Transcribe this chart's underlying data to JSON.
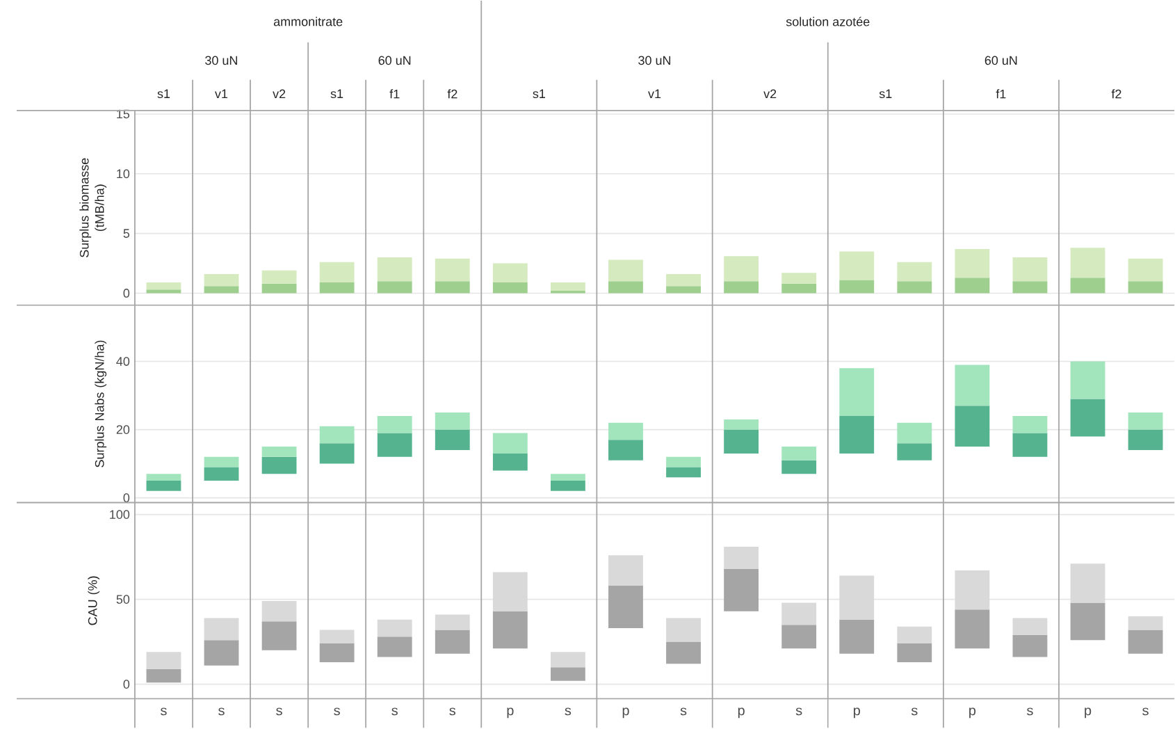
{
  "chart_data": [
    {
      "type": "bar",
      "ylabel": "Surplus biomasse (tMB/ha)",
      "grid": "y",
      "tick_labels": "y",
      "stacked": true,
      "categories": [
        null,
        null,
        null,
        null,
        null,
        null,
        null,
        null,
        null,
        null,
        null,
        null,
        null,
        null,
        null,
        null,
        null,
        null
      ],
      "series": [
        {
          "color": "#9fcf8f",
          "values": [
            0.3,
            0.6,
            0.8,
            0.9,
            1.0,
            1.0,
            0.9,
            0.2,
            1.0,
            0.6,
            1.0,
            0.8,
            1.1,
            1.0,
            1.3,
            1.0,
            1.3,
            1.0
          ]
        },
        {
          "color": "#d5ebbf",
          "values": [
            0.6,
            1.0,
            1.1,
            1.7,
            2.0,
            1.9,
            1.6,
            0.7,
            1.8,
            1.0,
            2.1,
            0.9,
            2.4,
            1.6,
            2.4,
            2.0,
            2.5,
            1.9
          ]
        }
      ],
      "ylim": [
        -1,
        15.3
      ],
      "yticks": [
        0,
        5,
        10,
        15
      ],
      "annotations": [
        "ammonitrate",
        "solution azotée",
        "30 uN",
        "60 uN",
        "30 uN",
        "60 uN",
        "s1",
        "v1",
        "v2",
        "s1",
        "f1",
        "f2",
        "s1",
        "v1",
        "v2",
        "s1",
        "f1",
        "f2"
      ]
    },
    {
      "type": "bar",
      "ylabel": "Surplus Nabs (kgN/ha)",
      "grid": "y",
      "tick_labels": "y",
      "categories": [
        null,
        null,
        null,
        null,
        null,
        null,
        null,
        null,
        null,
        null,
        null,
        null,
        null,
        null,
        null,
        null,
        null,
        null
      ],
      "series": [
        {
          "color": "#55b38f",
          "base": [
            2,
            5,
            7,
            10,
            12,
            14,
            8,
            2,
            11,
            6,
            13,
            7,
            13,
            11,
            15,
            12,
            18,
            14
          ],
          "values": [
            3,
            4,
            5,
            6,
            7,
            6,
            5,
            3,
            6,
            3,
            7,
            4,
            11,
            5,
            12,
            7,
            11,
            6
          ]
        },
        {
          "color": "#a2e5bd",
          "base": [
            5,
            9,
            12,
            16,
            19,
            20,
            13,
            5,
            17,
            9,
            20,
            11,
            24,
            16,
            27,
            19,
            29,
            20
          ],
          "values": [
            2,
            3,
            3,
            5,
            5,
            5,
            6,
            2,
            5,
            3,
            3,
            4,
            14,
            6,
            12,
            5,
            11,
            5
          ]
        }
      ],
      "ylim": [
        -1.4,
        56.5
      ],
      "yticks": [
        0,
        20,
        40
      ]
    },
    {
      "type": "bar",
      "ylabel": "CAU (%)",
      "grid": "y",
      "categories": [
        "s",
        "s",
        "s",
        "s",
        "s",
        "s",
        "p",
        "s",
        "p",
        "s",
        "p",
        "s",
        "p",
        "s",
        "p",
        "s",
        "p",
        "s"
      ],
      "series": [
        {
          "color": "#a5a5a5",
          "base": [
            1,
            11,
            20,
            13,
            16,
            18,
            21,
            2,
            33,
            12,
            43,
            21,
            18,
            13,
            21,
            16,
            26,
            18
          ],
          "values": [
            8,
            15,
            17,
            11,
            12,
            14,
            22,
            8,
            25,
            13,
            25,
            14,
            20,
            11,
            23,
            13,
            22,
            14
          ]
        },
        {
          "color": "#d9d9d9",
          "base": [
            9,
            26,
            37,
            24,
            28,
            32,
            43,
            10,
            58,
            25,
            68,
            35,
            38,
            24,
            44,
            29,
            48,
            32
          ],
          "values": [
            10,
            13,
            12,
            8,
            10,
            9,
            23,
            9,
            18,
            14,
            13,
            13,
            26,
            10,
            23,
            10,
            23,
            8
          ]
        }
      ],
      "ylim": [
        -8.5,
        107
      ],
      "yticks": [
        0,
        50,
        100
      ]
    }
  ]
}
